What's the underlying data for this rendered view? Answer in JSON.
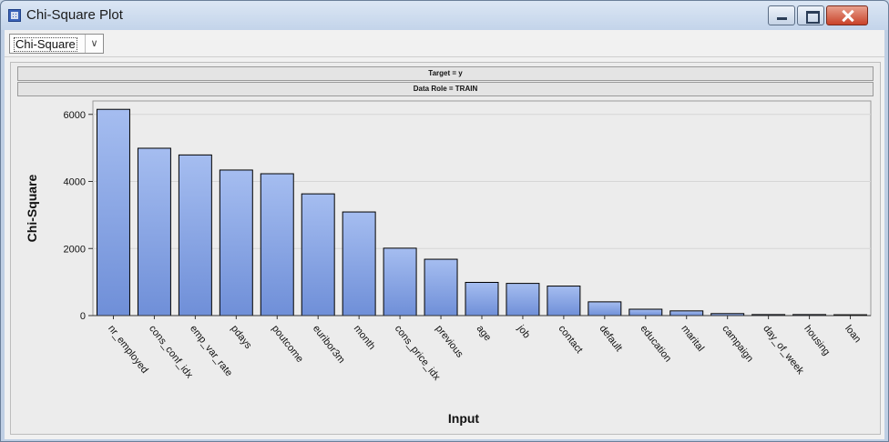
{
  "window": {
    "title": "Chi-Square Plot",
    "icon": "grid-chart-icon"
  },
  "toolbar": {
    "selected": "Chi-Square",
    "options": [
      "Chi-Square"
    ]
  },
  "strips": {
    "target": "Target = y",
    "role": "Data Role = TRAIN"
  },
  "colors": {
    "bar_top": "#a5bdf0",
    "bar_bottom": "#6f8fd8",
    "bar_edge": "#000000",
    "plot_bg": "#ececec"
  },
  "chart_data": {
    "type": "bar",
    "title": "",
    "xlabel": "Input",
    "ylabel": "Chi-Square",
    "ylim": [
      0,
      6400
    ],
    "yticks": [
      0,
      2000,
      4000,
      6000
    ],
    "grid": true,
    "categories": [
      "nr_employed",
      "cons_conf_idx",
      "emp_var_rate",
      "pdays",
      "poutcome",
      "euribor3m",
      "month",
      "cons_price_idx",
      "previous",
      "age",
      "job",
      "contact",
      "default",
      "education",
      "marital",
      "campaign",
      "day_of_week",
      "housing",
      "loan"
    ],
    "values": [
      6150,
      4990,
      4790,
      4340,
      4230,
      3630,
      3090,
      2010,
      1680,
      990,
      960,
      880,
      410,
      190,
      140,
      60,
      30,
      30,
      25
    ]
  }
}
